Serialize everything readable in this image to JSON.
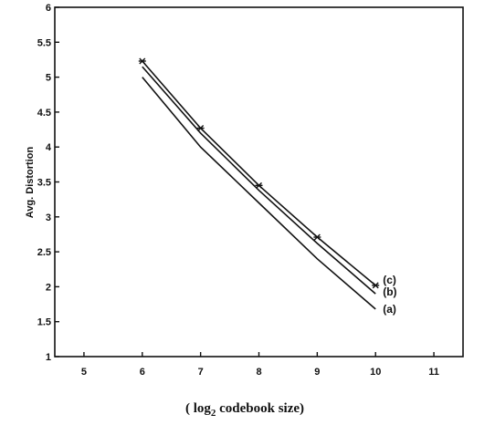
{
  "chart_data": {
    "type": "line",
    "xlabel": "( log 2 codebook size)",
    "xlabel_parts": {
      "open": "( log",
      "sub": "2",
      "close": " codebook size)"
    },
    "ylabel": "Avg. Distortion",
    "xlim": [
      4.5,
      11.5
    ],
    "ylim": [
      1,
      6
    ],
    "xticks": [
      5,
      6,
      7,
      8,
      9,
      10,
      11
    ],
    "yticks": [
      1,
      1.5,
      2,
      2.5,
      3,
      3.5,
      4,
      4.5,
      5,
      5.5,
      6
    ],
    "ytick_labels": [
      "1",
      "1.5",
      "2",
      "2.5",
      "3",
      "3.5",
      "4",
      "4.5",
      "5",
      "5.5",
      "6"
    ],
    "grid": false,
    "series": [
      {
        "name": "(a)",
        "marker": "none",
        "x": [
          6,
          7,
          8,
          9,
          10
        ],
        "y": [
          5.0,
          4.0,
          3.2,
          2.4,
          1.68
        ]
      },
      {
        "name": "(b)",
        "marker": "none",
        "x": [
          6,
          7,
          8,
          9,
          10
        ],
        "y": [
          5.15,
          4.2,
          3.38,
          2.62,
          1.9
        ]
      },
      {
        "name": "(c)",
        "marker": "star",
        "x": [
          6,
          7,
          8,
          9,
          10
        ],
        "y": [
          5.23,
          4.27,
          3.45,
          2.71,
          2.02
        ]
      }
    ]
  }
}
